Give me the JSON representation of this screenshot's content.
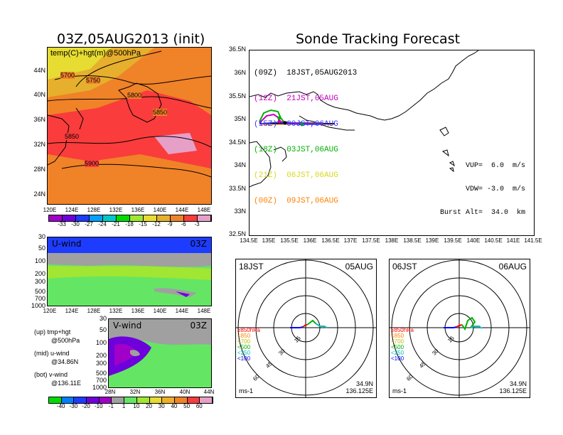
{
  "main_title": "Sonde Tracking Forecast",
  "init_title": "03Z,05AUG2013 (init)",
  "map500": {
    "label": "temp(C)+hgt(m)@500hPa",
    "contours": [
      "5700",
      "5750",
      "5800",
      "5850",
      "5850",
      "5900"
    ],
    "y_ticks": [
      "44N",
      "40N",
      "36N",
      "32N",
      "28N",
      "24N"
    ],
    "x_ticks": [
      "120E",
      "124E",
      "128E",
      "132E",
      "136E",
      "140E",
      "144E",
      "148E"
    ],
    "colorbar_labels": [
      "-33",
      "-30",
      "-27",
      "-24",
      "-21",
      "-18",
      "-15",
      "-12",
      "-9",
      "-6",
      "-3"
    ],
    "colorbar_colors": [
      "#a000c8",
      "#6e00dc",
      "#1e3cff",
      "#00a0ff",
      "#00c8c8",
      "#00dc00",
      "#a0e632",
      "#e6dc32",
      "#e6af2d",
      "#f08228",
      "#fa3c3c",
      "#e6a0c8"
    ]
  },
  "uwind": {
    "label": "U-wind",
    "time": "03Z",
    "y_ticks": [
      "30",
      "50",
      "100",
      "200",
      "300",
      "500",
      "700",
      "1000"
    ],
    "x_ticks": [
      "120E",
      "124E",
      "128E",
      "132E",
      "136E",
      "140E",
      "144E",
      "148E"
    ]
  },
  "vwind": {
    "label": "V-wind",
    "time": "03Z",
    "y_ticks": [
      "30",
      "50",
      "100",
      "200",
      "300",
      "500",
      "700",
      "1000"
    ],
    "x_ticks": [
      "28N",
      "32N",
      "36N",
      "40N",
      "44N"
    ]
  },
  "wind_colorbar": {
    "labels": [
      "-40",
      "-30",
      "-20",
      "-10",
      "-1",
      "1",
      "10",
      "20",
      "30",
      "40",
      "50",
      "60"
    ],
    "colors": [
      "#00dc00",
      "#0080ff",
      "#1e3cff",
      "#6e00dc",
      "#a000c8",
      "#a0a0a0",
      "#64e664",
      "#a0e632",
      "#e6dc32",
      "#f0af28",
      "#f08228",
      "#fa3c3c",
      "#e6a0c8"
    ]
  },
  "legend_left": [
    {
      "title": "(up) tmp+hgt",
      "sub": "@500hPa"
    },
    {
      "title": "(mid) u-wind",
      "sub": "@34.86N"
    },
    {
      "title": "(bot) v-wind",
      "sub": "@136.11E"
    }
  ],
  "track_map": {
    "entries": [
      {
        "label": "(09Z)  18JST,05AUG2013",
        "color": "#000000"
      },
      {
        "label": "(12Z)  21JST,05AUG",
        "color": "#c000c0"
      },
      {
        "label": "(15Z)  00JST,06AUG",
        "color": "#3030ff"
      },
      {
        "label": "(18Z)  03JST,06AUG",
        "color": "#00b000"
      },
      {
        "label": "(21Z)  06JST,06AUG",
        "color": "#d8d820"
      },
      {
        "label": "(00Z)  09JST,06AUG",
        "color": "#ff8000"
      }
    ],
    "y_ticks": [
      "36.5N",
      "36N",
      "35.5N",
      "35N",
      "34.5N",
      "34N",
      "33.5N",
      "33N",
      "32.5N"
    ],
    "x_ticks": [
      "134.5E",
      "135E",
      "135.5E",
      "136E",
      "136.5E",
      "137E",
      "137.5E",
      "138E",
      "138.5E",
      "139E",
      "139.5E",
      "140E",
      "140.5E",
      "141E",
      "141.5E"
    ],
    "info": [
      "VUP=  6.0  m/s",
      "VDW= -3.0  m/s",
      "Burst Alt=  34.0  km"
    ]
  },
  "polar_left": {
    "time_label": "18JST",
    "date_label": "05AUG",
    "ring_labels": [
      "15",
      "30",
      "45",
      "60"
    ],
    "level_labels": [
      "≥850hPa",
      "<850",
      "<700",
      "<500",
      "<250",
      "<100"
    ],
    "level_colors": [
      "#ff0000",
      "#ff8000",
      "#c0c000",
      "#00b000",
      "#00c0c0",
      "#0000ff"
    ],
    "unit": "ms-1",
    "loc_lat": "34.9N",
    "loc_lon": "136.125E"
  },
  "polar_right": {
    "time_label": "06JST",
    "date_label": "06AUG",
    "ring_labels": [
      "15",
      "30",
      "45",
      "60"
    ],
    "level_labels": [
      "≥850hPa",
      "<850",
      "<700",
      "<500",
      "<250",
      "<100"
    ],
    "level_colors": [
      "#ff0000",
      "#ff8000",
      "#c0c000",
      "#00b000",
      "#00c0c0",
      "#0000ff"
    ],
    "unit": "ms-1",
    "loc_lat": "34.9N",
    "loc_lon": "136.125E"
  }
}
